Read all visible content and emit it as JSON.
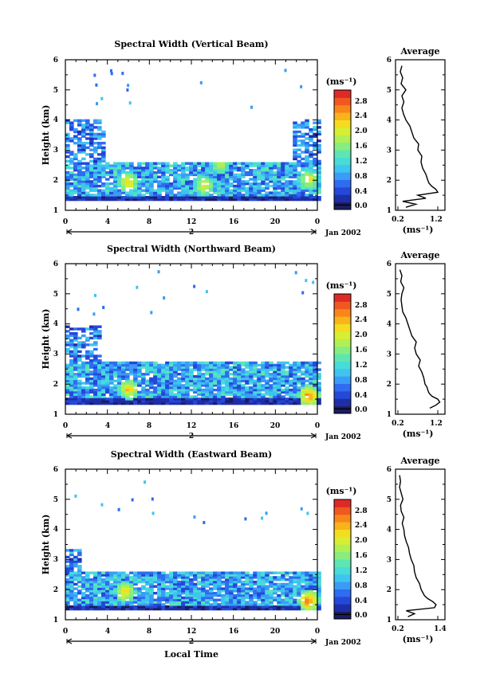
{
  "chart_data": [
    {
      "type": "heatmap",
      "title": "Spectral Width (Vertical Beam)",
      "ylabel": "Height (km)",
      "xlabel": "",
      "xlim": [
        0,
        24
      ],
      "ylim": [
        1,
        6
      ],
      "x_ticks": [
        "0",
        "4",
        "8",
        "12",
        "16",
        "20",
        "0"
      ],
      "y_ticks": [
        "1",
        "2",
        "3",
        "4",
        "5",
        "6"
      ],
      "date_axis": {
        "day": "2",
        "month_year": "Jan 2002"
      },
      "colorbar": {
        "unit": "(ms⁻¹)",
        "min": 0,
        "max": 3.0,
        "tick_labels": [
          "0.0",
          "0.4",
          "0.8",
          "1.2",
          "1.6",
          "2.0",
          "2.4",
          "2.8"
        ]
      },
      "colors": [
        "#1c1c5e",
        "#1e2ea8",
        "#2448d8",
        "#2e6cf0",
        "#3a9cf5",
        "#3fc4f0",
        "#47dcd8",
        "#5fe6b0",
        "#86ee80",
        "#b0f055",
        "#d8ee32",
        "#f4dc20",
        "#fab31a",
        "#f9861a",
        "#f0581f",
        "#de2a26"
      ],
      "data_bands": [
        {
          "y": [
            1.28,
            1.45
          ],
          "x": [
            0,
            24
          ],
          "value": "0.1-0.4"
        },
        {
          "y": [
            1.45,
            2.6
          ],
          "x": [
            0,
            24
          ],
          "value": "0.4-1.4"
        },
        {
          "y": [
            2.6,
            4.0
          ],
          "x": [
            0,
            3.5
          ],
          "value": "0.3-1.2"
        },
        {
          "y": [
            2.6,
            4.0
          ],
          "x": [
            21.5,
            24
          ],
          "value": "0.3-1.2"
        }
      ],
      "hotspots": [
        {
          "x": 5.8,
          "y": 1.9,
          "value": 2.2
        },
        {
          "x": 13.0,
          "y": 1.8,
          "value": 2.0
        },
        {
          "x": 14.5,
          "y": 2.5,
          "value": 1.8
        },
        {
          "x": 23.0,
          "y": 2.0,
          "value": 2.0
        }
      ],
      "average_profile": {
        "title": "Average",
        "xlabel": "(ms⁻¹)",
        "x_ticks": [
          "0.2",
          "1.2"
        ],
        "xlim": [
          0.2,
          1.2
        ],
        "height": [
          1.1,
          1.2,
          1.3,
          1.4,
          1.5,
          1.6,
          1.7,
          1.8,
          1.9,
          2.0,
          2.2,
          2.4,
          2.6,
          2.8,
          3.0,
          3.2,
          3.4,
          3.6,
          3.8,
          4.0,
          4.2,
          4.4,
          4.6,
          4.8,
          5.0,
          5.2,
          5.4,
          5.6,
          5.8
        ],
        "value": [
          0.4,
          0.65,
          0.32,
          0.9,
          0.7,
          1.2,
          1.15,
          1.05,
          0.98,
          0.95,
          0.9,
          0.82,
          0.78,
          0.8,
          0.7,
          0.72,
          0.6,
          0.55,
          0.5,
          0.4,
          0.34,
          0.3,
          0.35,
          0.3,
          0.4,
          0.28,
          0.32,
          0.26,
          0.3
        ]
      }
    },
    {
      "type": "heatmap",
      "title": "Spectral Width (Northward Beam)",
      "ylabel": "Height (km)",
      "xlabel": "",
      "xlim": [
        0,
        24
      ],
      "ylim": [
        1,
        6
      ],
      "x_ticks": [
        "0",
        "4",
        "8",
        "12",
        "16",
        "20",
        "0"
      ],
      "y_ticks": [
        "1",
        "2",
        "3",
        "4",
        "5",
        "6"
      ],
      "date_axis": {
        "day": "2",
        "month_year": "Jan 2002"
      },
      "colorbar": {
        "unit": "(ms⁻¹)",
        "min": 0,
        "max": 3.0,
        "tick_labels": [
          "0.0",
          "0.4",
          "0.8",
          "1.2",
          "1.6",
          "2.0",
          "2.4",
          "2.8"
        ]
      },
      "colors": [
        "#1c1c5e",
        "#1e2ea8",
        "#2448d8",
        "#2e6cf0",
        "#3a9cf5",
        "#3fc4f0",
        "#47dcd8",
        "#5fe6b0",
        "#86ee80",
        "#b0f055",
        "#d8ee32",
        "#f4dc20",
        "#fab31a",
        "#f9861a",
        "#f0581f",
        "#de2a26"
      ],
      "data_bands": [
        {
          "y": [
            1.3,
            1.5
          ],
          "x": [
            0,
            24
          ],
          "value": "0.1-0.4"
        },
        {
          "y": [
            1.5,
            2.7
          ],
          "x": [
            0,
            24
          ],
          "value": "0.4-1.4"
        },
        {
          "y": [
            2.7,
            3.9
          ],
          "x": [
            0,
            3.2
          ],
          "value": "0.3-1.2"
        }
      ],
      "hotspots": [
        {
          "x": 5.8,
          "y": 1.8,
          "value": 2.2
        },
        {
          "x": 23.0,
          "y": 1.6,
          "value": 2.6
        }
      ],
      "average_profile": {
        "title": "Average",
        "xlabel": "(ms⁻¹)",
        "x_ticks": [
          "0.2",
          "1.2"
        ],
        "xlim": [
          0.2,
          1.2
        ],
        "height": [
          1.2,
          1.3,
          1.4,
          1.5,
          1.6,
          1.7,
          1.8,
          1.9,
          2.0,
          2.2,
          2.4,
          2.6,
          2.8,
          3.0,
          3.2,
          3.4,
          3.6,
          3.8,
          4.0,
          4.2,
          4.4,
          4.6,
          4.8,
          5.0,
          5.2,
          5.4,
          5.6,
          5.8
        ],
        "value": [
          1.0,
          1.15,
          1.25,
          1.2,
          1.05,
          0.98,
          0.95,
          0.93,
          0.88,
          0.85,
          0.8,
          0.72,
          0.76,
          0.66,
          0.62,
          0.66,
          0.55,
          0.5,
          0.45,
          0.4,
          0.32,
          0.3,
          0.28,
          0.3,
          0.35,
          0.27,
          0.3,
          0.25
        ]
      }
    },
    {
      "type": "heatmap",
      "title": "Spectral Width (Eastward Beam)",
      "ylabel": "Height (km)",
      "xlabel": "Local Time",
      "xlim": [
        0,
        24
      ],
      "ylim": [
        1,
        6
      ],
      "x_ticks": [
        "0",
        "4",
        "8",
        "12",
        "16",
        "20",
        "0"
      ],
      "y_ticks": [
        "1",
        "2",
        "3",
        "4",
        "5",
        "6"
      ],
      "date_axis": {
        "day": "2",
        "month_year": "Jan 2002"
      },
      "colorbar": {
        "unit": "(ms⁻¹)",
        "min": 0,
        "max": 3.0,
        "tick_labels": [
          "0.0",
          "0.4",
          "0.8",
          "1.2",
          "1.6",
          "2.0",
          "2.4",
          "2.8"
        ]
      },
      "colors": [
        "#1c1c5e",
        "#1e2ea8",
        "#2448d8",
        "#2e6cf0",
        "#3a9cf5",
        "#3fc4f0",
        "#47dcd8",
        "#5fe6b0",
        "#86ee80",
        "#b0f055",
        "#d8ee32",
        "#f4dc20",
        "#fab31a",
        "#f9861a",
        "#f0581f",
        "#de2a26"
      ],
      "data_bands": [
        {
          "y": [
            1.3,
            1.45
          ],
          "x": [
            0,
            24
          ],
          "value": "0.1-0.4"
        },
        {
          "y": [
            1.45,
            2.6
          ],
          "x": [
            0,
            24
          ],
          "value": "0.4-1.4"
        },
        {
          "y": [
            2.6,
            3.3
          ],
          "x": [
            0,
            1.5
          ],
          "value": "0.3-1.2"
        }
      ],
      "hotspots": [
        {
          "x": 5.5,
          "y": 1.9,
          "value": 2.2
        },
        {
          "x": 23.0,
          "y": 1.6,
          "value": 2.6
        }
      ],
      "average_profile": {
        "title": "Average",
        "xlabel": "(ms⁻¹)",
        "x_ticks": [
          "0.2",
          "1.4"
        ],
        "xlim": [
          0.2,
          1.4
        ],
        "height": [
          1.1,
          1.2,
          1.3,
          1.4,
          1.5,
          1.6,
          1.7,
          1.8,
          1.9,
          2.0,
          2.2,
          2.4,
          2.6,
          2.8,
          3.0,
          3.2,
          3.4,
          3.6,
          3.8,
          4.0,
          4.2,
          4.4,
          4.6,
          4.8,
          5.0,
          5.2,
          5.4,
          5.6,
          5.8
        ],
        "value": [
          0.5,
          0.7,
          0.45,
          1.3,
          1.35,
          1.25,
          1.1,
          1.0,
          0.95,
          0.9,
          0.85,
          0.75,
          0.7,
          0.68,
          0.6,
          0.55,
          0.52,
          0.45,
          0.4,
          0.38,
          0.33,
          0.38,
          0.3,
          0.28,
          0.35,
          0.3,
          0.25,
          0.28,
          0.25
        ]
      }
    }
  ]
}
